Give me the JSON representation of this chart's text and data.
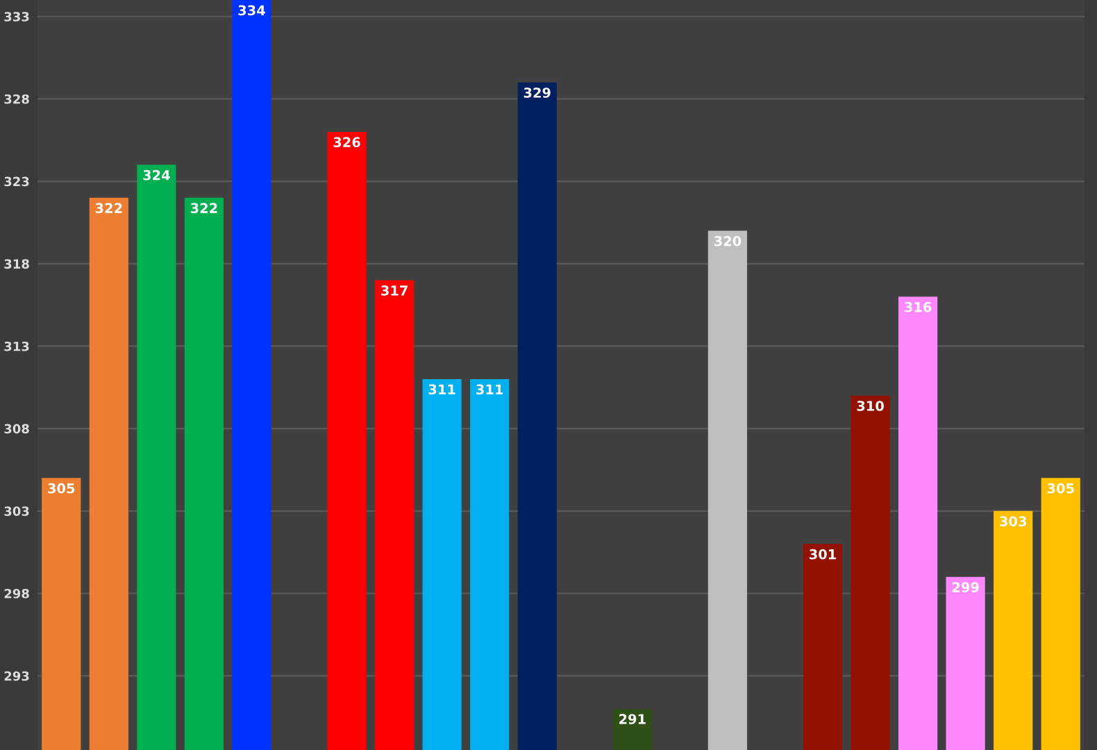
{
  "chart_data": {
    "type": "bar",
    "categories": [
      null,
      null,
      null,
      null,
      null,
      null,
      null,
      null,
      null,
      null,
      null,
      null,
      null,
      null,
      null,
      null,
      null,
      null,
      null,
      null,
      null,
      null
    ],
    "values": [
      305,
      322,
      324,
      322,
      334,
      null,
      326,
      317,
      311,
      311,
      329,
      null,
      291,
      null,
      320,
      null,
      301,
      310,
      316,
      299,
      303,
      305
    ],
    "colors": [
      "#ed7d31",
      "#ed7d31",
      "#00b050",
      "#00b050",
      "#0033ff",
      null,
      "#ff0000",
      "#ff0000",
      "#00b0f0",
      "#00b0f0",
      "#002060",
      null,
      "#2f5016",
      null,
      "#bfbfbf",
      null,
      "#921100",
      "#921100",
      "#ff88ff",
      "#ff88ff",
      "#ffc000",
      "#ffc000"
    ],
    "ylim": [
      288.5,
      334
    ],
    "yticks": [
      293,
      298,
      303,
      308,
      313,
      318,
      323,
      328,
      333
    ],
    "grid": "y",
    "data_labels": true,
    "tick_labels": "y"
  }
}
